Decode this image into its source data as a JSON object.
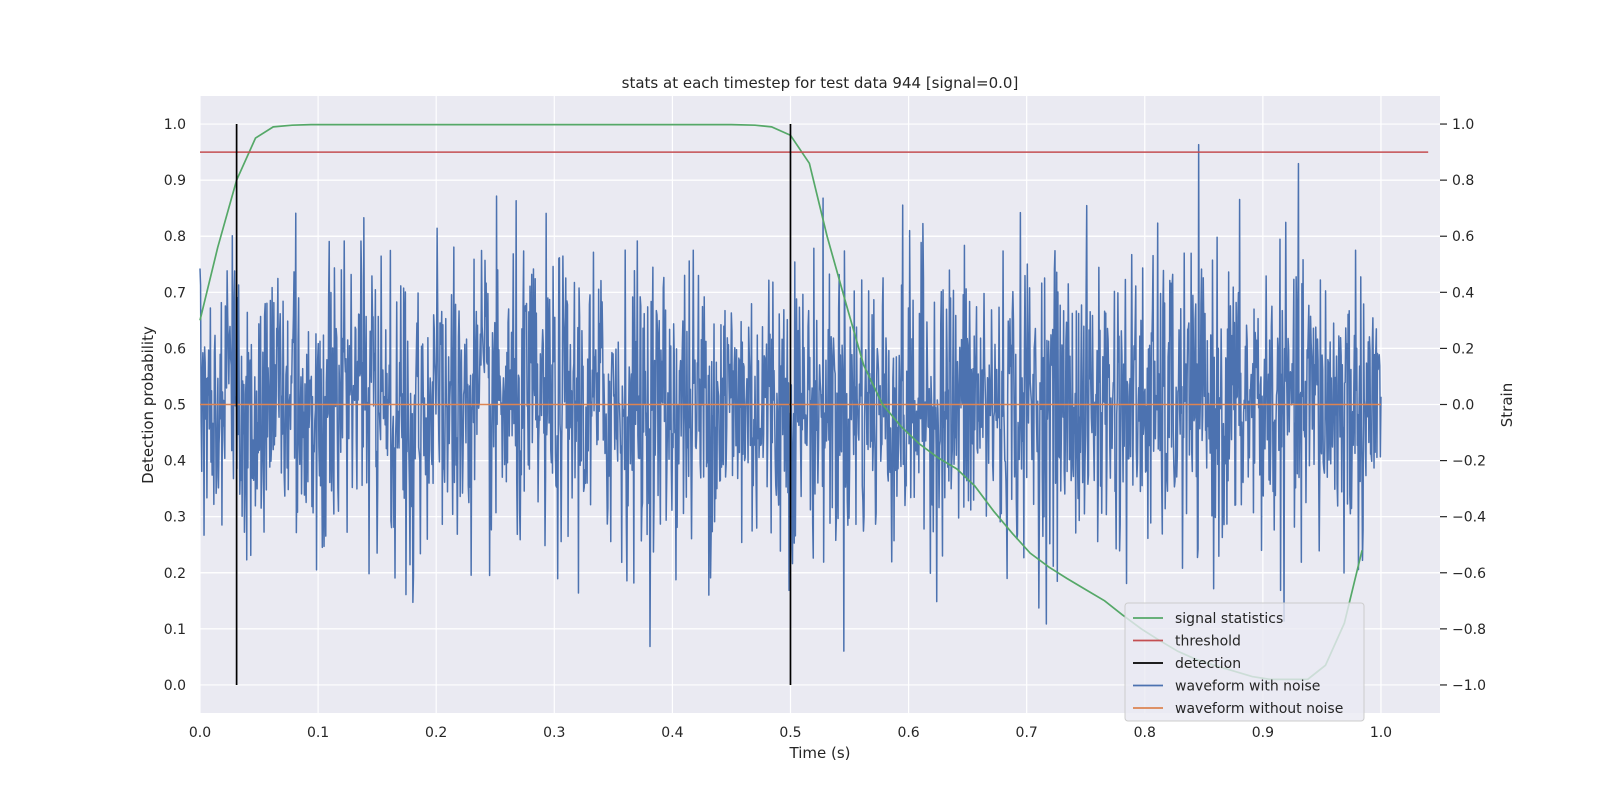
{
  "chart_data": {
    "type": "line",
    "title": "stats at each timestep for test data 944 [signal=0.0]",
    "xlabel": "Time (s)",
    "ylabel": "Detection probability",
    "y2label": "Strain",
    "xlim": [
      0.0,
      1.05
    ],
    "ylim": [
      -0.05,
      1.05
    ],
    "y2lim": [
      -1.1,
      1.1
    ],
    "xticks": [
      "0.0",
      "0.1",
      "0.2",
      "0.3",
      "0.4",
      "0.5",
      "0.6",
      "0.7",
      "0.8",
      "0.9",
      "1.0"
    ],
    "yticks": [
      "0.0",
      "0.1",
      "0.2",
      "0.3",
      "0.4",
      "0.5",
      "0.6",
      "0.7",
      "0.8",
      "0.9",
      "1.0"
    ],
    "y2ticks": [
      "−1.0",
      "−0.8",
      "−0.6",
      "−0.4",
      "−0.2",
      "0.0",
      "0.2",
      "0.4",
      "0.6",
      "0.8",
      "1.0"
    ],
    "grid": true,
    "legend_position": "lower-right",
    "colors": {
      "signal": "#55a868",
      "threshold": "#c44e52",
      "detection": "#000000",
      "noisy": "#4c72b0",
      "clean": "#dd8452",
      "background": "#eaeaf2"
    },
    "series": [
      {
        "name": "signal statistics",
        "axis": "left",
        "x": [
          0.0,
          0.015,
          0.031,
          0.047,
          0.062,
          0.078,
          0.094,
          0.2,
          0.3,
          0.4,
          0.45,
          0.47,
          0.484,
          0.5,
          0.516,
          0.531,
          0.547,
          0.562,
          0.578,
          0.594,
          0.609,
          0.625,
          0.641,
          0.656,
          0.672,
          0.688,
          0.703,
          0.719,
          0.734,
          0.75,
          0.766,
          0.781,
          0.797,
          0.812,
          0.828,
          0.844,
          0.859,
          0.875,
          0.891,
          0.906,
          0.922,
          0.938,
          0.953,
          0.969,
          0.984
        ],
        "y": [
          0.65,
          0.78,
          0.9,
          0.975,
          0.995,
          0.998,
          0.999,
          0.999,
          0.999,
          0.999,
          0.999,
          0.998,
          0.995,
          0.98,
          0.93,
          0.8,
          0.68,
          0.57,
          0.5,
          0.46,
          0.43,
          0.405,
          0.385,
          0.355,
          0.31,
          0.27,
          0.235,
          0.21,
          0.19,
          0.17,
          0.15,
          0.125,
          0.1,
          0.08,
          0.06,
          0.045,
          0.035,
          0.025,
          0.015,
          0.01,
          0.01,
          0.01,
          0.035,
          0.11,
          0.24
        ]
      },
      {
        "name": "threshold",
        "axis": "left",
        "x": [
          0.0,
          1.04
        ],
        "y": [
          0.95,
          0.95
        ]
      },
      {
        "name": "detection",
        "axis": "left",
        "segments": [
          {
            "x": 0.031,
            "y": [
              0.0,
              1.0
            ]
          },
          {
            "x": 0.5,
            "y": [
              0.0,
              1.0
            ]
          }
        ]
      },
      {
        "name": "waveform with noise",
        "axis": "right",
        "x_range": [
          0.0,
          1.0
        ],
        "points": 2048,
        "amplitude_std": 0.26,
        "y_range": [
          -1.0,
          1.0
        ]
      },
      {
        "name": "waveform without noise",
        "axis": "right",
        "x": [
          0.0,
          1.0
        ],
        "y": [
          0.0,
          0.0
        ]
      }
    ]
  }
}
